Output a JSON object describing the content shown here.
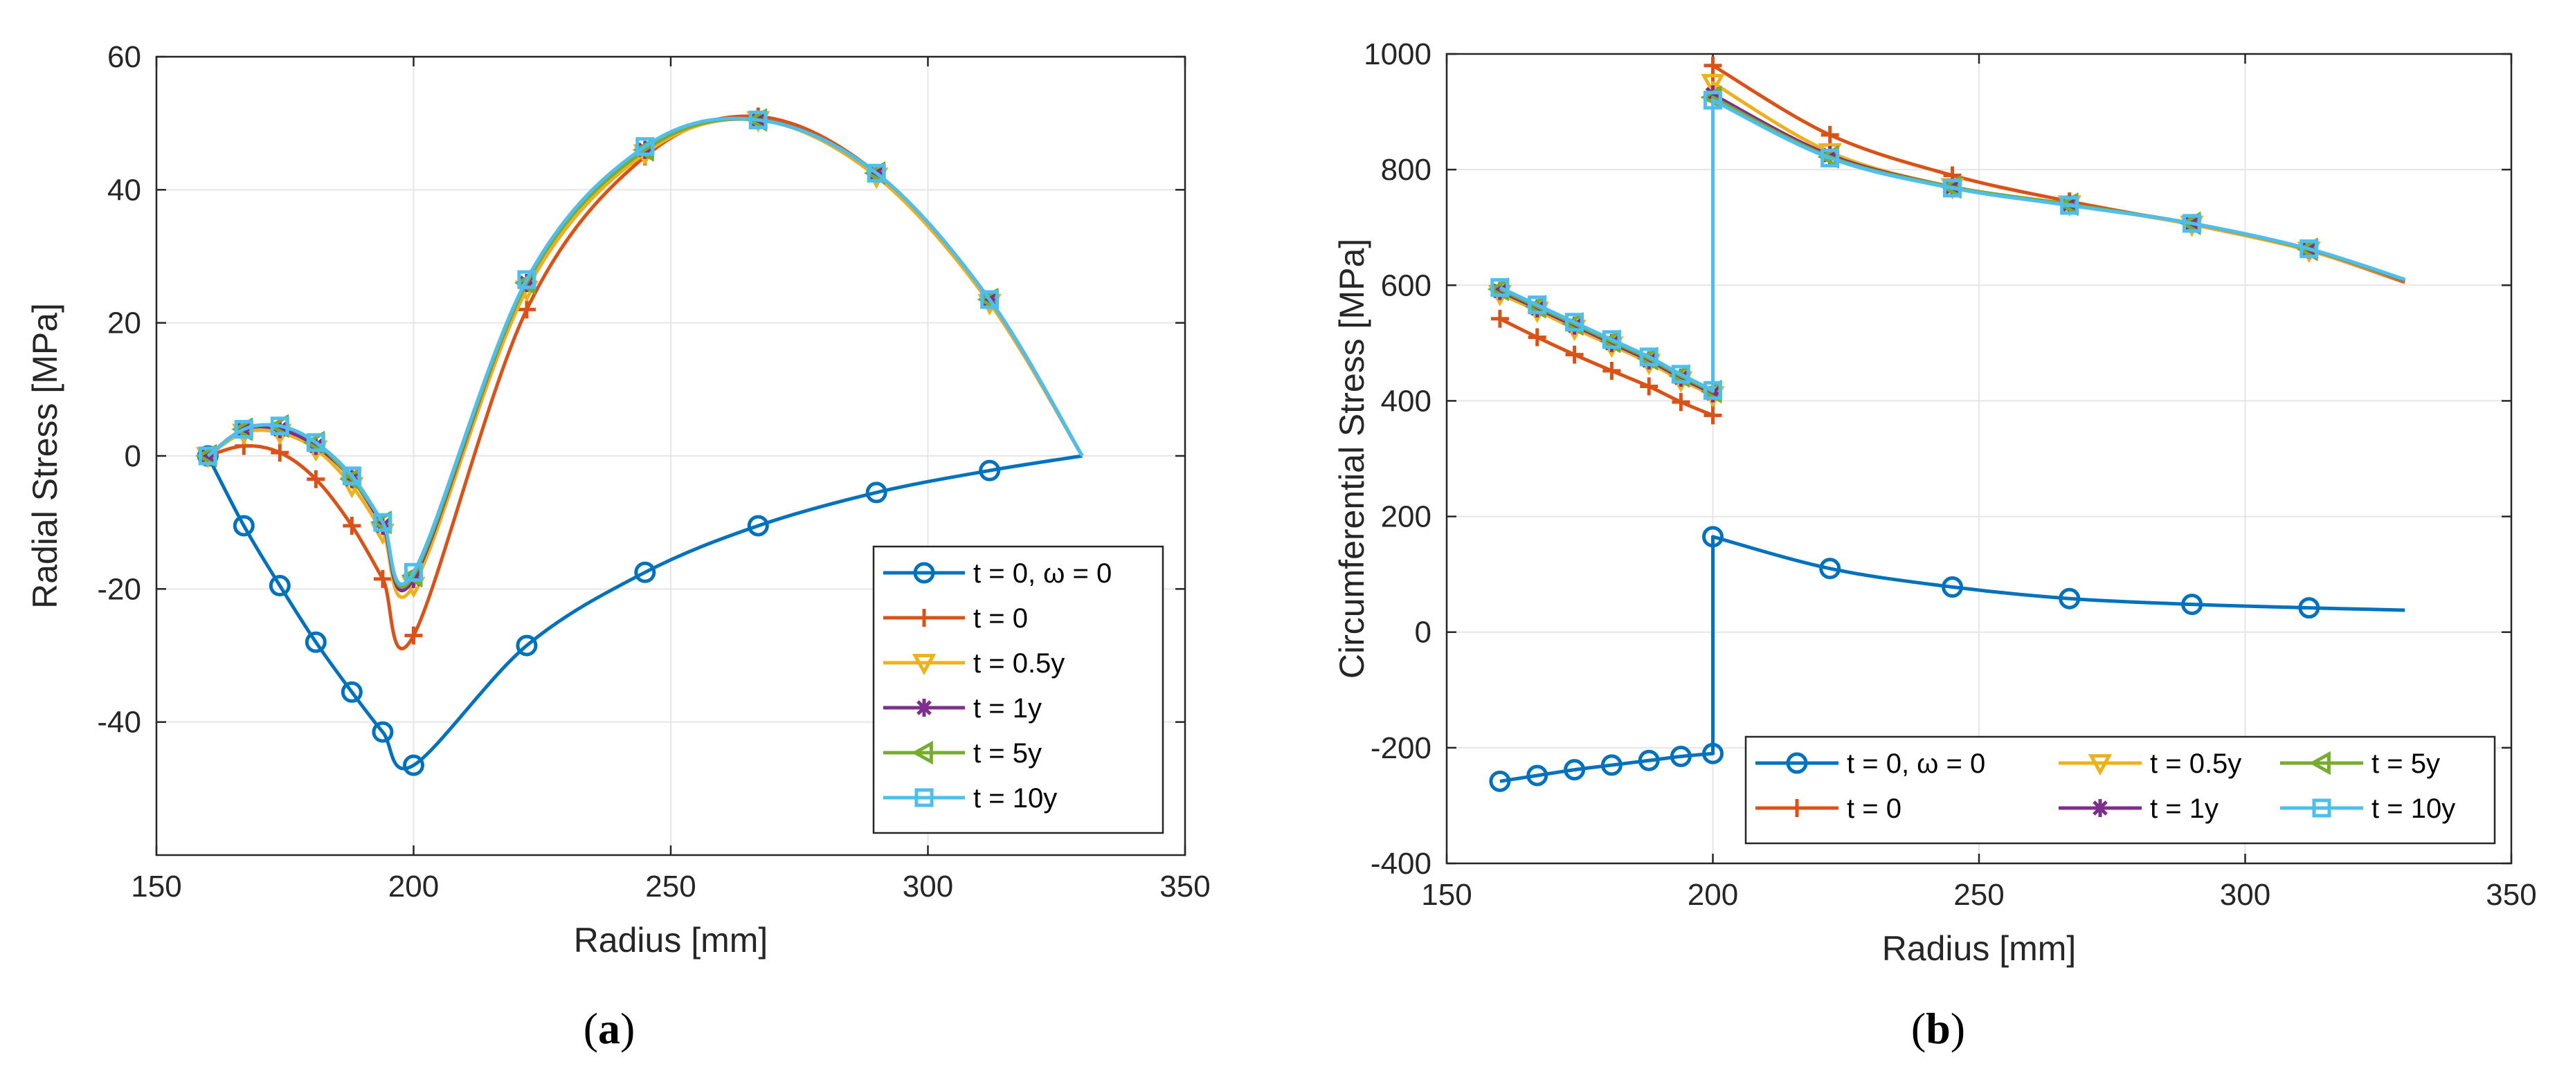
{
  "chart_data": [
    {
      "type": "line",
      "panel_label": "a",
      "xlabel": "Radius [mm]",
      "ylabel": "Radial Stress [MPa]",
      "xlim": [
        150,
        350
      ],
      "ylim": [
        -60,
        60
      ],
      "xticks": [
        150,
        200,
        250,
        300,
        350
      ],
      "yticks": [
        -40,
        -20,
        0,
        20,
        40,
        60
      ],
      "grid": true,
      "legend_position": "lower-right",
      "series": [
        {
          "name": "t = 0, ω = 0",
          "color": "#0072BD",
          "marker": "circle",
          "x": [
            160,
            167,
            174,
            181,
            188,
            194,
            200,
            222,
            245,
            267,
            290,
            312,
            330
          ],
          "y": [
            0,
            -10.5,
            -19.5,
            -28,
            -35.5,
            -41.5,
            -46.5,
            -28.5,
            -17.5,
            -10.5,
            -5.5,
            -2.2,
            0
          ]
        },
        {
          "name": "t = 0",
          "color": "#D95319",
          "marker": "plus",
          "x": [
            160,
            167,
            174,
            181,
            188,
            194,
            200,
            222,
            245,
            267,
            290,
            312,
            330
          ],
          "y": [
            0,
            1.5,
            0.5,
            -3.5,
            -10.5,
            -18.5,
            -27,
            22,
            45,
            51,
            42.5,
            23,
            0
          ]
        },
        {
          "name": "t = 0.5y",
          "color": "#EDB120",
          "marker": "triangle-down",
          "x": [
            160,
            167,
            174,
            181,
            188,
            194,
            200,
            222,
            245,
            267,
            290,
            312,
            330
          ],
          "y": [
            0,
            3.5,
            3.5,
            1,
            -4.5,
            -11.5,
            -19.5,
            25,
            45.5,
            50.5,
            42,
            23,
            0
          ]
        },
        {
          "name": "t = 1y",
          "color": "#7E2F8E",
          "marker": "asterisk",
          "x": [
            160,
            167,
            174,
            181,
            188,
            194,
            200,
            222,
            245,
            267,
            290,
            312,
            330
          ],
          "y": [
            0,
            4,
            4,
            1.5,
            -3.5,
            -10.5,
            -18.5,
            26,
            46,
            50.5,
            42.5,
            23.5,
            0
          ]
        },
        {
          "name": "t = 5y",
          "color": "#77AC30",
          "marker": "triangle-left",
          "x": [
            160,
            167,
            174,
            181,
            188,
            194,
            200,
            222,
            245,
            267,
            290,
            312,
            330
          ],
          "y": [
            0,
            4,
            4.5,
            2,
            -3.5,
            -10,
            -18,
            26,
            46,
            50.5,
            42.5,
            23.5,
            0
          ]
        },
        {
          "name": "t = 10y",
          "color": "#4DBEEE",
          "marker": "square",
          "x": [
            160,
            167,
            174,
            181,
            188,
            194,
            200,
            222,
            245,
            267,
            290,
            312,
            330
          ],
          "y": [
            0,
            4,
            4.5,
            2,
            -3,
            -10,
            -17.5,
            26.5,
            46.5,
            50.5,
            42.5,
            23.5,
            0
          ]
        }
      ]
    },
    {
      "type": "line",
      "panel_label": "b",
      "xlabel": "Radius [mm]",
      "ylabel": "Circumferential Stress [MPa]",
      "xlim": [
        150,
        350
      ],
      "ylim": [
        -400,
        1000
      ],
      "xticks": [
        150,
        200,
        250,
        300,
        350
      ],
      "yticks": [
        -400,
        -200,
        0,
        200,
        400,
        600,
        800,
        1000
      ],
      "grid": true,
      "legend_position": "lower-right",
      "series": [
        {
          "name": "t = 0, ω = 0",
          "color": "#0072BD",
          "marker": "circle",
          "x": [
            160,
            167,
            174,
            181,
            188,
            194,
            200,
            200,
            222,
            245,
            267,
            290,
            312,
            330
          ],
          "y": [
            -258,
            -248,
            -238,
            -230,
            -222,
            -215,
            -210,
            165,
            110,
            78,
            58,
            48,
            42,
            38
          ]
        },
        {
          "name": "t = 0",
          "color": "#D95319",
          "marker": "plus",
          "x": [
            160,
            167,
            174,
            181,
            188,
            194,
            200,
            200,
            222,
            245,
            267,
            290,
            312,
            330
          ],
          "y": [
            542,
            510,
            480,
            452,
            425,
            398,
            375,
            980,
            860,
            790,
            745,
            705,
            660,
            605
          ]
        },
        {
          "name": "t = 0.5y",
          "color": "#EDB120",
          "marker": "triangle-down",
          "x": [
            160,
            167,
            174,
            181,
            188,
            194,
            200,
            200,
            222,
            245,
            267,
            290,
            312,
            330
          ],
          "y": [
            585,
            556,
            525,
            496,
            466,
            436,
            410,
            950,
            830,
            770,
            740,
            705,
            660,
            607
          ]
        },
        {
          "name": "t = 1y",
          "color": "#7E2F8E",
          "marker": "asterisk",
          "x": [
            160,
            167,
            174,
            181,
            188,
            194,
            200,
            200,
            222,
            245,
            267,
            290,
            312,
            330
          ],
          "y": [
            590,
            560,
            530,
            500,
            470,
            440,
            413,
            930,
            825,
            770,
            740,
            707,
            662,
            608
          ]
        },
        {
          "name": "t = 5y",
          "color": "#77AC30",
          "marker": "triangle-left",
          "x": [
            160,
            167,
            174,
            181,
            188,
            194,
            200,
            200,
            222,
            245,
            267,
            290,
            312,
            330
          ],
          "y": [
            593,
            563,
            533,
            503,
            473,
            443,
            416,
            925,
            822,
            770,
            740,
            707,
            662,
            609
          ]
        },
        {
          "name": "t = 10y",
          "color": "#4DBEEE",
          "marker": "square",
          "x": [
            160,
            167,
            174,
            181,
            188,
            194,
            200,
            200,
            222,
            245,
            267,
            290,
            312,
            330
          ],
          "y": [
            596,
            566,
            536,
            506,
            476,
            446,
            418,
            920,
            820,
            768,
            738,
            707,
            663,
            610
          ]
        }
      ]
    }
  ]
}
